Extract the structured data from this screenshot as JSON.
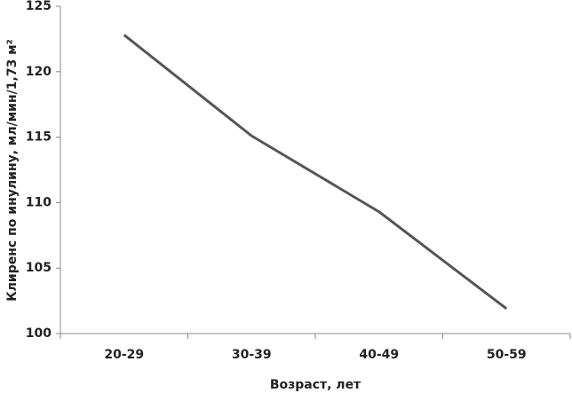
{
  "chart_data": {
    "type": "line",
    "xlabel": "Возраст, лет",
    "ylabel": "Клиренс по инулину, мл/мин/1,73 м²",
    "categories": [
      "20-29",
      "30-39",
      "40-49",
      "50-59"
    ],
    "values": [
      122.8,
      115.1,
      109.3,
      101.9
    ],
    "color": "#555555",
    "ylim": [
      100,
      125
    ],
    "yticks": [
      100,
      105,
      110,
      115,
      120,
      125
    ],
    "grid": false
  }
}
